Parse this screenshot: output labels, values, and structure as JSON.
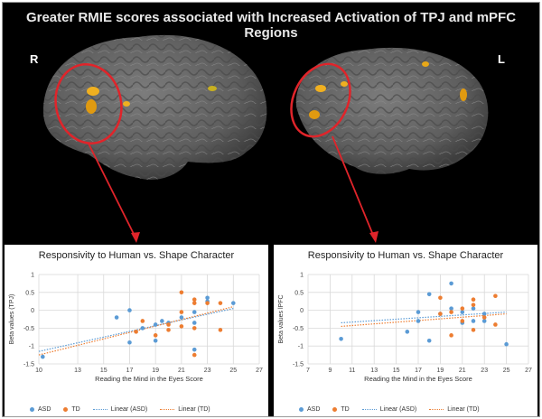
{
  "figure": {
    "title": "Greater RMIE scores associated with Increased Activation of TPJ and mPFC Regions",
    "right_label": "R",
    "left_label": "L",
    "colors": {
      "asd": "#5b9bd5",
      "td": "#ed7d31",
      "annotation": "#e0242a",
      "activation": "#f0b020",
      "brain": "#6a6a6a"
    }
  },
  "legend": {
    "asd": "ASD",
    "td": "TD",
    "linear_asd": "Linear (ASD)",
    "linear_td": "Linear (TD)"
  },
  "chart_data": [
    {
      "type": "scatter",
      "title": "Responsivity to Human vs. Shape Character",
      "xlabel": "Reading the Mind in the Eyes Score",
      "ylabel": "Beta values (TPJ)",
      "xlim": [
        10,
        27
      ],
      "ylim": [
        -1.5,
        1
      ],
      "xticks": [
        10,
        13,
        15,
        17,
        19,
        21,
        23,
        25,
        27
      ],
      "yticks": [
        1,
        0.5,
        0,
        -0.5,
        -1,
        -1.5
      ],
      "grid": true,
      "legend_position": "bottom",
      "series": [
        {
          "name": "ASD",
          "points": [
            [
              10.3,
              -1.3
            ],
            [
              16,
              -0.2
            ],
            [
              17,
              -0.9
            ],
            [
              17,
              0
            ],
            [
              18,
              -0.5
            ],
            [
              19,
              -0.4
            ],
            [
              19,
              -0.85
            ],
            [
              19.5,
              -0.3
            ],
            [
              20,
              -0.35
            ],
            [
              21,
              -0.2
            ],
            [
              22,
              -1.1
            ],
            [
              22,
              -0.35
            ],
            [
              22,
              -0.05
            ],
            [
              23,
              0.35
            ],
            [
              23,
              0.25
            ],
            [
              25,
              0.2
            ]
          ]
        },
        {
          "name": "TD",
          "points": [
            [
              17.5,
              -0.6
            ],
            [
              18,
              -0.3
            ],
            [
              19,
              -0.7
            ],
            [
              20,
              -0.55
            ],
            [
              20,
              -0.4
            ],
            [
              21,
              0.5
            ],
            [
              21,
              -0.45
            ],
            [
              21,
              -0.05
            ],
            [
              22,
              -1.25
            ],
            [
              22,
              0.2
            ],
            [
              22,
              -0.5
            ],
            [
              22,
              0.3
            ],
            [
              23,
              0.2
            ],
            [
              24,
              -0.55
            ],
            [
              24,
              0.2
            ]
          ]
        }
      ],
      "trendlines": [
        {
          "name": "Linear (ASD)",
          "from": [
            10,
            -1.15
          ],
          "to": [
            25,
            0.05
          ]
        },
        {
          "name": "Linear (TD)",
          "from": [
            10,
            -1.25
          ],
          "to": [
            25,
            0.1
          ]
        }
      ]
    },
    {
      "type": "scatter",
      "title": "Responsivity to Human vs. Shape Character",
      "xlabel": "Reading the Mind in the Eyes Score",
      "ylabel": "Beta values lPFC",
      "xlim": [
        7,
        27
      ],
      "ylim": [
        -1.5,
        1
      ],
      "xticks": [
        7,
        9,
        11,
        13,
        15,
        17,
        19,
        21,
        23,
        25,
        27
      ],
      "yticks": [
        1,
        0.5,
        0,
        -0.5,
        -1,
        -1.5
      ],
      "grid": true,
      "legend_position": "bottom",
      "series": [
        {
          "name": "ASD",
          "points": [
            [
              10,
              -0.8
            ],
            [
              16,
              -0.6
            ],
            [
              17,
              -0.3
            ],
            [
              17,
              -0.05
            ],
            [
              18,
              0.45
            ],
            [
              18,
              -0.85
            ],
            [
              19,
              -0.1
            ],
            [
              20,
              0.75
            ],
            [
              20,
              0.05
            ],
            [
              21,
              -0.35
            ],
            [
              21,
              -0.05
            ],
            [
              22,
              -0.3
            ],
            [
              22,
              0.05
            ],
            [
              23,
              -0.3
            ],
            [
              23,
              -0.1
            ],
            [
              25,
              -0.95
            ]
          ]
        },
        {
          "name": "TD",
          "points": [
            [
              19,
              0.35
            ],
            [
              19,
              -0.1
            ],
            [
              20,
              -0.05
            ],
            [
              20,
              -0.7
            ],
            [
              21,
              0.05
            ],
            [
              21,
              -0.3
            ],
            [
              22,
              0.3
            ],
            [
              22,
              -0.55
            ],
            [
              22,
              0.15
            ],
            [
              23,
              -0.2
            ],
            [
              24,
              0.4
            ],
            [
              24,
              -0.4
            ]
          ]
        }
      ],
      "trendlines": [
        {
          "name": "Linear (ASD)",
          "from": [
            10,
            -0.35
          ],
          "to": [
            25,
            -0.05
          ]
        },
        {
          "name": "Linear (TD)",
          "from": [
            10,
            -0.45
          ],
          "to": [
            25,
            -0.1
          ]
        }
      ]
    }
  ]
}
